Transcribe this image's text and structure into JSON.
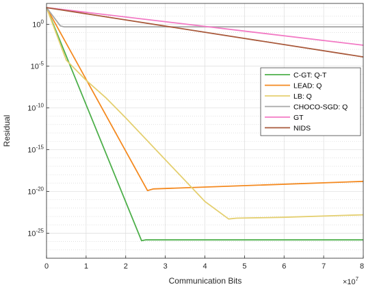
{
  "chart_data": {
    "type": "line",
    "xlabel": "Communication Bits",
    "ylabel": "Residual",
    "x_multiplier_label": "×10",
    "x_multiplier_exp": "7",
    "xlim": [
      0,
      8
    ],
    "ylim_log10": [
      -28,
      2.5
    ],
    "yscale": "log",
    "grid": true,
    "legend_position": "right-middle",
    "x_ticks": [
      "0",
      "1",
      "2",
      "3",
      "4",
      "5",
      "6",
      "7",
      "8"
    ],
    "y_ticks": [
      {
        "base": "10",
        "exp": "0"
      },
      {
        "base": "10",
        "exp": "-5"
      },
      {
        "base": "10",
        "exp": "-10"
      },
      {
        "base": "10",
        "exp": "-15"
      },
      {
        "base": "10",
        "exp": "-20"
      },
      {
        "base": "10",
        "exp": "-25"
      }
    ],
    "series": [
      {
        "name": "C-GT: Q-T",
        "color": "#4daf4a",
        "x": [
          0,
          2.4,
          2.5,
          8
        ],
        "log10_y": [
          2,
          -25.9,
          -25.8,
          -25.8
        ]
      },
      {
        "name": "LEAD: Q",
        "color": "#f4891f",
        "x": [
          0,
          2.55,
          2.7,
          8
        ],
        "log10_y": [
          2,
          -19.9,
          -19.7,
          -18.8
        ]
      },
      {
        "name": "LB: Q",
        "color": "#e4cf6f",
        "x": [
          0,
          0.5,
          1,
          1.5,
          2,
          2.5,
          3,
          3.5,
          4,
          4.6,
          4.8,
          6,
          8
        ],
        "log10_y": [
          2,
          -4.3,
          -6.7,
          -8.8,
          -11.2,
          -13.7,
          -16.2,
          -18.7,
          -21.2,
          -23.3,
          -23.2,
          -23.1,
          -22.8
        ]
      },
      {
        "name": "CHOCO-SGD: Q",
        "color": "#a6a6a6",
        "x": [
          0,
          0.35,
          0.45,
          8
        ],
        "log10_y": [
          2,
          -0.2,
          -0.3,
          -0.3
        ]
      },
      {
        "name": "GT",
        "color": "#f279c4",
        "x": [
          0,
          8
        ],
        "log10_y": [
          2,
          -2.5
        ]
      },
      {
        "name": "NIDS",
        "color": "#a8583a",
        "x": [
          0,
          8
        ],
        "log10_y": [
          2,
          -3.9
        ]
      }
    ]
  }
}
